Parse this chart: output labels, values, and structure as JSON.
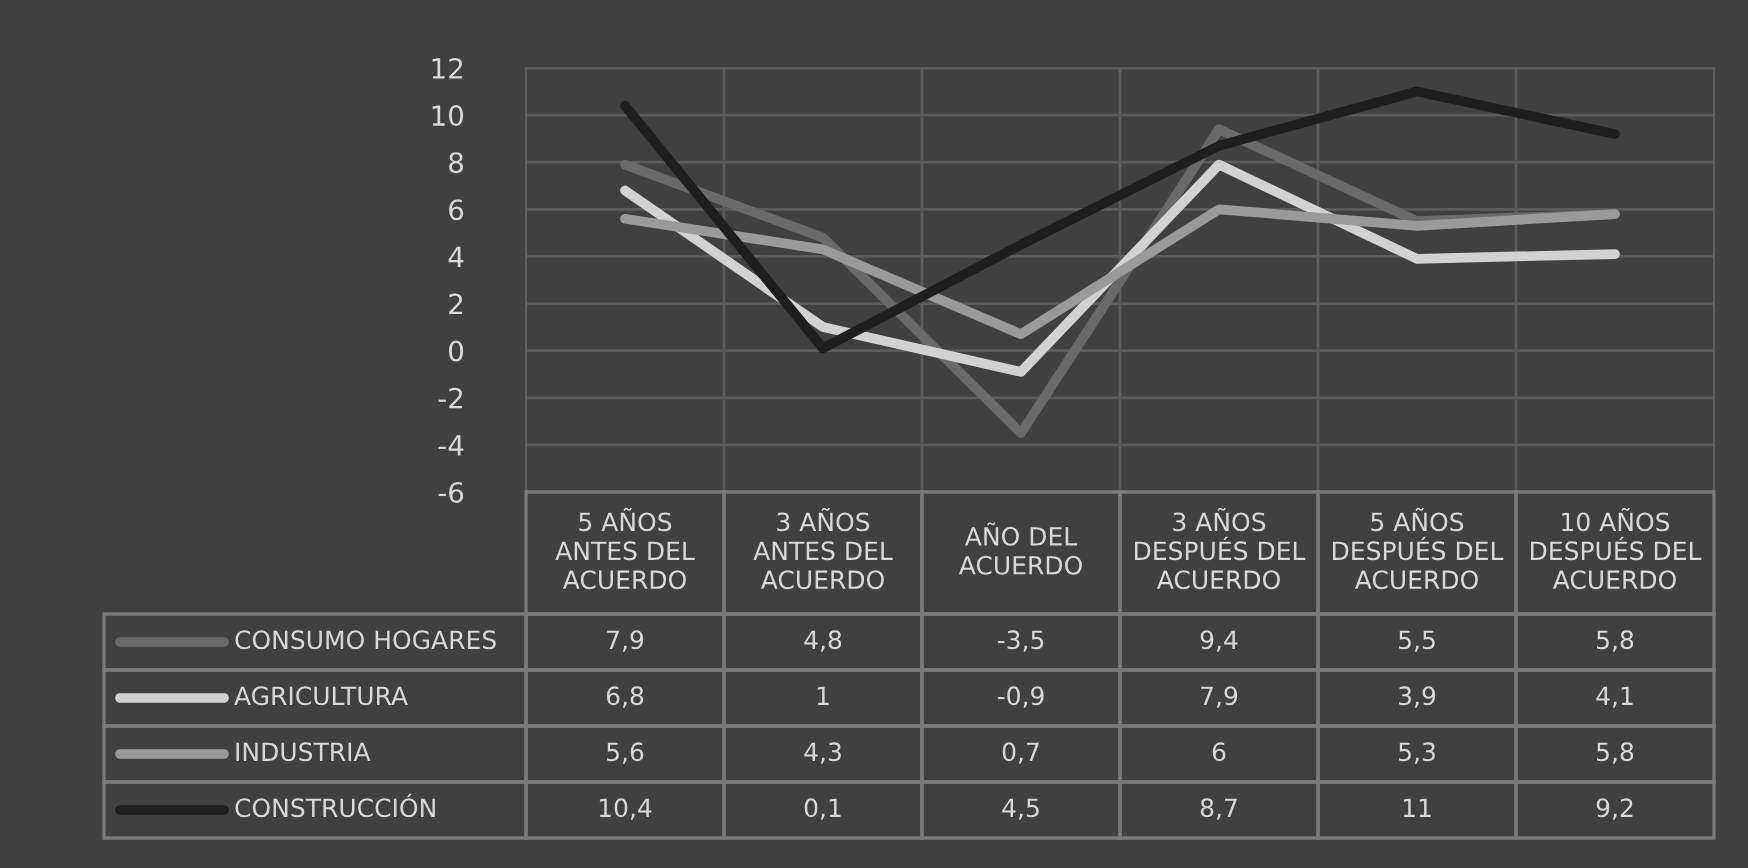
{
  "chart_data": {
    "type": "line",
    "categories": [
      "5 AÑOS\nANTES DEL\nACUERDO",
      "3 AÑOS\nANTES DEL\nACUERDO",
      "AÑO DEL\nACUERDO",
      "3 AÑOS\nDESPUÉS DEL\nACUERDO",
      "5 AÑOS\nDESPUÉS DEL\nACUERDO",
      "10 AÑOS\nDESPUÉS DEL\nACUERDO"
    ],
    "series": [
      {
        "name": "CONSUMO HOGARES",
        "color": "#6a6a6a",
        "values": [
          7.9,
          4.8,
          -3.5,
          9.4,
          5.5,
          5.8
        ],
        "value_labels": [
          "7,9",
          "4,8",
          "-3,5",
          "9,4",
          "5,5",
          "5,8"
        ]
      },
      {
        "name": "AGRICULTURA",
        "color": "#d2d2d2",
        "values": [
          6.8,
          1,
          -0.9,
          7.9,
          3.9,
          4.1
        ],
        "value_labels": [
          "6,8",
          "1",
          "-0,9",
          "7,9",
          "3,9",
          "4,1"
        ]
      },
      {
        "name": "INDUSTRIA",
        "color": "#9a9a9a",
        "values": [
          5.6,
          4.3,
          0.7,
          6,
          5.3,
          5.8
        ],
        "value_labels": [
          "5,6",
          "4,3",
          "0,7",
          "6",
          "5,3",
          "5,8"
        ]
      },
      {
        "name": "CONSTRUCCIÓN",
        "color": "#1e1e1e",
        "values": [
          10.4,
          0.1,
          4.5,
          8.7,
          11,
          9.2
        ],
        "value_labels": [
          "10,4",
          "0,1",
          "4,5",
          "8,7",
          "11",
          "9,2"
        ]
      }
    ],
    "ylim": [
      -6,
      12
    ],
    "yticks": [
      -6,
      -4,
      -2,
      0,
      2,
      4,
      6,
      8,
      10,
      12
    ],
    "grid": true,
    "legend": "bottom",
    "marker": "none",
    "line_style": "solid"
  }
}
